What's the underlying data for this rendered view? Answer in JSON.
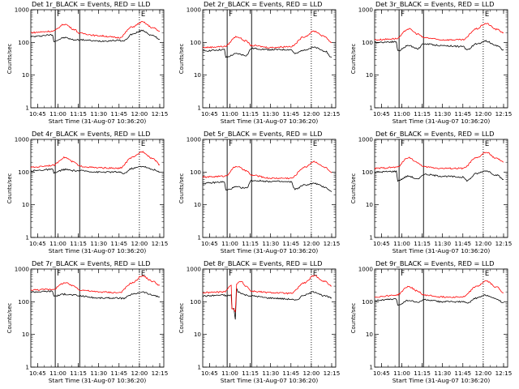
{
  "figure": {
    "start_time_label": "Start Time (31-Aug-07 10:36:20)",
    "ylabel": "Counts/sec",
    "xtick_labels": [
      "10:45",
      "11:00",
      "11:15",
      "11:30",
      "11:45",
      "12:00",
      "12:15"
    ],
    "ytick_labels": [
      "1",
      "10",
      "100",
      "1000"
    ],
    "marker_labels": [
      "F",
      "E"
    ],
    "colors": {
      "events": "#000000",
      "lld": "#ff0000",
      "axes": "#000000"
    }
  },
  "chart_data": [
    {
      "type": "line",
      "title": "Det 1r_BLACK = Events, RED = LLD",
      "xlabel": "Start Time (31-Aug-07 10:36:20)",
      "ylabel": "Counts/sec",
      "yscale": "log",
      "ylim": [
        1,
        1000
      ],
      "xlim": [
        "10:40",
        "12:18"
      ],
      "vlines_solid": [
        "10:58",
        "11:16"
      ],
      "vlines_dotted": [
        "12:00"
      ],
      "markers": [
        {
          "label": "F",
          "x": "10:58"
        },
        {
          "label": "E",
          "x": "12:00"
        }
      ],
      "series": [
        {
          "name": "Events",
          "color": "#000000",
          "x": [
            "10:40",
            "10:56",
            "10:57",
            "11:05",
            "11:12",
            "11:16",
            "11:30",
            "11:45",
            "11:48",
            "11:55",
            "12:02",
            "12:10",
            "12:15"
          ],
          "values": [
            150,
            170,
            110,
            140,
            120,
            120,
            110,
            115,
            110,
            180,
            230,
            160,
            125
          ]
        },
        {
          "name": "LLD",
          "color": "#ff0000",
          "x": [
            "10:40",
            "10:56",
            "11:05",
            "11:12",
            "11:16",
            "11:30",
            "11:45",
            "11:55",
            "12:02",
            "12:10",
            "12:15"
          ],
          "values": [
            200,
            220,
            360,
            250,
            190,
            160,
            140,
            300,
            420,
            280,
            220
          ]
        }
      ]
    },
    {
      "type": "line",
      "title": "Det 2r_BLACK = Events, RED = LLD",
      "xlabel": "Start Time (31-Aug-07 10:36:20)",
      "ylabel": "Counts/sec",
      "yscale": "log",
      "ylim": [
        1,
        1000
      ],
      "xlim": [
        "10:40",
        "12:18"
      ],
      "vlines_solid": [
        "10:58",
        "11:16"
      ],
      "vlines_dotted": [
        "12:00"
      ],
      "markers": [
        {
          "label": "F",
          "x": "10:58"
        },
        {
          "label": "E",
          "x": "12:00"
        }
      ],
      "series": [
        {
          "name": "Events",
          "color": "#000000",
          "x": [
            "10:40",
            "10:56",
            "10:57",
            "11:05",
            "11:12",
            "11:16",
            "11:30",
            "11:45",
            "11:48",
            "11:55",
            "12:02",
            "12:10",
            "12:15"
          ],
          "values": [
            55,
            60,
            35,
            45,
            40,
            65,
            60,
            60,
            45,
            60,
            70,
            55,
            35
          ]
        },
        {
          "name": "LLD",
          "color": "#ff0000",
          "x": [
            "10:40",
            "10:56",
            "11:05",
            "11:12",
            "11:16",
            "11:30",
            "11:45",
            "11:55",
            "12:02",
            "12:10",
            "12:15"
          ],
          "values": [
            70,
            75,
            150,
            110,
            80,
            70,
            75,
            150,
            220,
            150,
            100
          ]
        }
      ]
    },
    {
      "type": "line",
      "title": "Det 3r_BLACK = Events, RED = LLD",
      "xlabel": "Start Time (31-Aug-07 10:36:20)",
      "ylabel": "Counts/sec",
      "yscale": "log",
      "ylim": [
        1,
        1000
      ],
      "xlim": [
        "10:40",
        "12:18"
      ],
      "vlines_solid": [
        "10:58",
        "11:16"
      ],
      "vlines_dotted": [
        "12:00"
      ],
      "markers": [
        {
          "label": "F",
          "x": "10:58"
        },
        {
          "label": "E",
          "x": "12:00"
        }
      ],
      "series": [
        {
          "name": "Events",
          "color": "#000000",
          "x": [
            "10:40",
            "10:56",
            "10:57",
            "11:05",
            "11:12",
            "11:16",
            "11:30",
            "11:45",
            "11:48",
            "11:55",
            "12:02",
            "12:10",
            "12:15"
          ],
          "values": [
            100,
            105,
            55,
            80,
            65,
            90,
            80,
            75,
            60,
            90,
            110,
            80,
            60
          ]
        },
        {
          "name": "LLD",
          "color": "#ff0000",
          "x": [
            "10:40",
            "10:56",
            "11:05",
            "11:12",
            "11:16",
            "11:30",
            "11:45",
            "11:55",
            "12:02",
            "12:10",
            "12:15"
          ],
          "values": [
            120,
            130,
            260,
            180,
            140,
            120,
            120,
            260,
            380,
            250,
            200
          ]
        }
      ]
    },
    {
      "type": "line",
      "title": "Det 4r_BLACK = Events, RED = LLD",
      "xlabel": "Start Time (31-Aug-07 10:36:20)",
      "ylabel": "Counts/sec",
      "yscale": "log",
      "ylim": [
        1,
        1000
      ],
      "xlim": [
        "10:40",
        "12:18"
      ],
      "vlines_solid": [
        "10:58",
        "11:16"
      ],
      "vlines_dotted": [
        "12:00"
      ],
      "markers": [
        {
          "label": "F",
          "x": "10:58"
        },
        {
          "label": "E",
          "x": "12:00"
        }
      ],
      "series": [
        {
          "name": "Events",
          "color": "#000000",
          "x": [
            "10:40",
            "10:56",
            "10:57",
            "11:05",
            "11:12",
            "11:16",
            "11:30",
            "11:45",
            "11:48",
            "11:55",
            "12:02",
            "12:10",
            "12:15"
          ],
          "values": [
            110,
            120,
            95,
            120,
            110,
            110,
            100,
            100,
            90,
            130,
            150,
            120,
            100
          ]
        },
        {
          "name": "LLD",
          "color": "#ff0000",
          "x": [
            "10:40",
            "10:56",
            "11:05",
            "11:12",
            "11:16",
            "11:30",
            "11:45",
            "11:55",
            "12:02",
            "12:10",
            "12:15"
          ],
          "values": [
            140,
            160,
            280,
            200,
            150,
            135,
            130,
            280,
            420,
            260,
            170
          ]
        }
      ]
    },
    {
      "type": "line",
      "title": "Det 5r_BLACK = Events, RED = LLD",
      "xlabel": "Start Time (31-Aug-07 10:36:20)",
      "ylabel": "Counts/sec",
      "yscale": "log",
      "ylim": [
        1,
        1000
      ],
      "xlim": [
        "10:40",
        "12:18"
      ],
      "vlines_solid": [
        "10:58",
        "11:16"
      ],
      "vlines_dotted": [
        "12:00"
      ],
      "markers": [
        {
          "label": "F",
          "x": "10:58"
        },
        {
          "label": "E",
          "x": "12:00"
        }
      ],
      "series": [
        {
          "name": "Events",
          "color": "#000000",
          "x": [
            "10:40",
            "10:56",
            "10:57",
            "11:05",
            "11:12",
            "11:16",
            "11:30",
            "11:45",
            "11:48",
            "11:55",
            "12:02",
            "12:10",
            "12:15"
          ],
          "values": [
            45,
            50,
            28,
            35,
            32,
            55,
            52,
            50,
            30,
            40,
            45,
            35,
            25
          ]
        },
        {
          "name": "LLD",
          "color": "#ff0000",
          "x": [
            "10:40",
            "10:56",
            "11:05",
            "11:12",
            "11:16",
            "11:30",
            "11:45",
            "11:55",
            "12:02",
            "12:10",
            "12:15"
          ],
          "values": [
            70,
            75,
            150,
            110,
            80,
            65,
            65,
            140,
            210,
            140,
            95
          ]
        }
      ]
    },
    {
      "type": "line",
      "title": "Det 6r_BLACK = Events, RED = LLD",
      "xlabel": "Start Time (31-Aug-07 10:36:20)",
      "ylabel": "Counts/sec",
      "yscale": "log",
      "ylim": [
        1,
        1000
      ],
      "xlim": [
        "10:40",
        "12:18"
      ],
      "vlines_solid": [
        "10:58",
        "11:16"
      ],
      "vlines_dotted": [
        "12:00"
      ],
      "markers": [
        {
          "label": "F",
          "x": "10:58"
        },
        {
          "label": "E",
          "x": "12:00"
        }
      ],
      "series": [
        {
          "name": "Events",
          "color": "#000000",
          "x": [
            "10:40",
            "10:56",
            "10:57",
            "11:05",
            "11:12",
            "11:16",
            "11:30",
            "11:45",
            "11:48",
            "11:55",
            "12:02",
            "12:10",
            "12:15"
          ],
          "values": [
            100,
            105,
            55,
            75,
            60,
            85,
            75,
            70,
            55,
            90,
            110,
            80,
            60
          ]
        },
        {
          "name": "LLD",
          "color": "#ff0000",
          "x": [
            "10:40",
            "10:56",
            "11:05",
            "11:12",
            "11:16",
            "11:30",
            "11:45",
            "11:55",
            "12:02",
            "12:10",
            "12:15"
          ],
          "values": [
            130,
            140,
            280,
            190,
            145,
            130,
            130,
            270,
            400,
            260,
            200
          ]
        }
      ]
    },
    {
      "type": "line",
      "title": "Det 7r_BLACK = Events, RED = LLD",
      "xlabel": "Start Time (31-Aug-07 10:36:20)",
      "ylabel": "Counts/sec",
      "yscale": "log",
      "ylim": [
        1,
        1000
      ],
      "xlim": [
        "10:40",
        "12:18"
      ],
      "vlines_solid": [
        "10:58",
        "11:16"
      ],
      "vlines_dotted": [
        "12:00"
      ],
      "markers": [
        {
          "label": "F",
          "x": "10:58"
        },
        {
          "label": "E",
          "x": "12:00"
        }
      ],
      "series": [
        {
          "name": "Events",
          "color": "#000000",
          "x": [
            "10:40",
            "10:56",
            "10:57",
            "11:05",
            "11:12",
            "11:16",
            "11:30",
            "11:45",
            "11:48",
            "11:55",
            "12:02",
            "12:10",
            "12:15"
          ],
          "values": [
            200,
            210,
            150,
            170,
            160,
            150,
            130,
            130,
            125,
            170,
            200,
            160,
            140
          ]
        },
        {
          "name": "LLD",
          "color": "#ff0000",
          "x": [
            "10:40",
            "10:56",
            "11:05",
            "11:12",
            "11:16",
            "11:30",
            "11:45",
            "11:55",
            "12:02",
            "12:10",
            "12:15"
          ],
          "values": [
            230,
            240,
            380,
            300,
            230,
            200,
            190,
            380,
            620,
            420,
            320
          ]
        }
      ]
    },
    {
      "type": "line",
      "title": "Det 8r_BLACK = Events, RED = LLD",
      "xlabel": "Start Time (31-Aug-07 10:36:20)",
      "ylabel": "Counts/sec",
      "yscale": "log",
      "ylim": [
        1,
        1000
      ],
      "xlim": [
        "10:40",
        "12:18"
      ],
      "vlines_solid": [
        "10:58",
        "11:16"
      ],
      "vlines_dotted": [
        "12:00"
      ],
      "markers": [
        {
          "label": "F",
          "x": "10:58"
        },
        {
          "label": "E",
          "x": "12:00"
        }
      ],
      "series": [
        {
          "name": "Events",
          "color": "#000000",
          "x": [
            "10:40",
            "10:56",
            "10:57",
            "11:01",
            "11:01.5",
            "11:03",
            "11:04",
            "11:05",
            "11:06",
            "11:12",
            "11:16",
            "11:30",
            "11:45",
            "11:48",
            "11:55",
            "12:02",
            "12:10",
            "12:15"
          ],
          "values": [
            150,
            160,
            150,
            160,
            60,
            60,
            30,
            250,
            200,
            160,
            150,
            130,
            120,
            110,
            160,
            200,
            150,
            130
          ]
        },
        {
          "name": "LLD",
          "color": "#ff0000",
          "x": [
            "10:40",
            "10:56",
            "11:00",
            "11:01",
            "11:01.5",
            "11:03",
            "11:04",
            "11:05",
            "11:08",
            "11:12",
            "11:16",
            "11:30",
            "11:45",
            "11:55",
            "12:02",
            "12:10",
            "12:15"
          ],
          "values": [
            190,
            200,
            300,
            330,
            60,
            60,
            50,
            350,
            420,
            300,
            210,
            190,
            180,
            380,
            620,
            420,
            300
          ]
        }
      ]
    },
    {
      "type": "line",
      "title": "Det 9r_BLACK = Events, RED = LLD",
      "xlabel": "Start Time (31-Aug-07 10:36:20)",
      "ylabel": "Counts/sec",
      "yscale": "log",
      "ylim": [
        1,
        1000
      ],
      "xlim": [
        "10:40",
        "12:18"
      ],
      "vlines_solid": [
        "10:58",
        "11:16"
      ],
      "vlines_dotted": [
        "12:00"
      ],
      "markers": [
        {
          "label": "F",
          "x": "10:58"
        },
        {
          "label": "E",
          "x": "12:00"
        }
      ],
      "series": [
        {
          "name": "Events",
          "color": "#000000",
          "x": [
            "10:40",
            "10:56",
            "10:57",
            "11:05",
            "11:12",
            "11:16",
            "11:30",
            "11:45",
            "11:48",
            "11:55",
            "12:02",
            "12:10",
            "12:15"
          ],
          "values": [
            110,
            120,
            80,
            110,
            95,
            115,
            100,
            100,
            90,
            130,
            160,
            120,
            95
          ]
        },
        {
          "name": "LLD",
          "color": "#ff0000",
          "x": [
            "10:40",
            "10:56",
            "11:05",
            "11:12",
            "11:16",
            "11:30",
            "11:45",
            "11:55",
            "12:02",
            "12:10",
            "12:15"
          ],
          "values": [
            140,
            160,
            290,
            210,
            160,
            140,
            140,
            290,
            430,
            280,
            190
          ]
        }
      ]
    }
  ]
}
